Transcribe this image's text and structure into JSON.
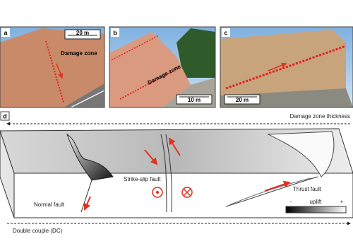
{
  "panels": [
    {
      "label": "a",
      "scale": "20 m",
      "annotation": "Damage zone"
    },
    {
      "label": "b",
      "scale": "10 m",
      "annotation": "Damage zone"
    },
    {
      "label": "c",
      "scale": "20 m"
    }
  ],
  "diagram": {
    "label": "d",
    "top_arrow": "Damage zone thickness",
    "bottom_arrow": "Double couple (DC)",
    "faults": [
      "Normal fault",
      "Strike-slip fault",
      "Thrust fault"
    ],
    "legend": {
      "low": "-",
      "title": "uplift",
      "high": "+"
    }
  }
}
